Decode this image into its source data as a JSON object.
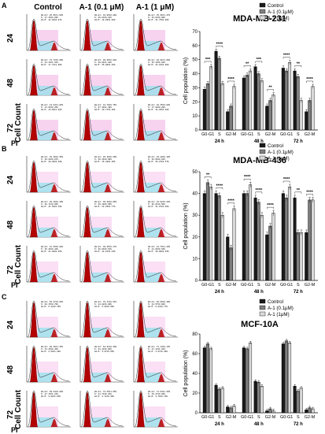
{
  "left_panel": {
    "columns": [
      "Control",
      "A-1 (0.1 μM)",
      "A-1 (1 μM)"
    ],
    "rows": [
      "24",
      "48",
      "72"
    ],
    "ylabel": "Cell Count",
    "xlabel": "PI",
    "panel_letters": [
      "A",
      "B",
      "C"
    ],
    "histograms": {
      "A": [
        [
          "G0-G1: 25.95±1.03%",
          "S: 47.46±0.29%",
          "G2-M: 13.02±0.87%"
        ],
        [
          "G0-G1: 32.06±0.89%",
          "S: 46.83±0.31%",
          "G2-M: 18.29±0.88%"
        ],
        [
          "G0-G1: 35.66±1.47%",
          "S: 33.03±0.89%",
          "G2-M: 31.75±0.89%"
        ],
        [
          "G0-G1: 37.72±0.09%",
          "S: 44.13±1.31%",
          "G2-M: 17.71±1.06%"
        ],
        [
          "G0-G1: 39.05±0.02%",
          "S: 39.86±1.10%",
          "G2-M: 35.98±0.46%"
        ],
        [
          "G0-G1: 40.91±1.66%",
          "S: 35.10±0.82%",
          "G2-M: 24.10±0.86%"
        ],
        [
          "G0-G1: 44.04±1.03%",
          "S: 41.93±0.26%",
          "G2-M: 13.00±1.02%"
        ],
        [
          "G0-G1: 41.79±0.75%",
          "S: 37.30±1.49%",
          "G2-M: 20.77±0.36%"
        ],
        [
          "G0-G1: 48.35±0.03%",
          "S: 17.89±0.28%",
          "G2-M: 31.85±0.40%"
        ]
      ],
      "B": [
        [
          "G0-G1: 45.39±0.35%",
          "S: 40.20±0.07%",
          "G2-M: 20.86±0.49%"
        ],
        [
          "G0-G1: 45.26±0.30%",
          "S: 39.46±0.09%",
          "G2-M: 15.48±0.36%"
        ],
        [
          "G0-G1: 45.20±0.40%",
          "S: 26.96±0.62%",
          "G2-M: 32.87±0.57%"
        ],
        [
          "G0-G1: 39.40±0.40%",
          "S: 38.71±0.66%",
          "G2-M: 21.58±0.10%"
        ],
        [
          "G0-G1: 39.90±0.06%",
          "S: 36.40±0.36%",
          "G2-M: 24.35±0.77%"
        ],
        [
          "G0-G1: 43.92±0.28%",
          "S: 30.01±0.50%",
          "G2-M: 31.07±0.26%"
        ],
        [
          "G0-G1: 41.45±0.88%",
          "S: 36.26±0.42%",
          "G2-M: 21.88±0.25%"
        ],
        [
          "G0-G1: 38.85±0.17%",
          "S: 38.69±0.61%",
          "G2-M: 24.07±0.43%"
        ],
        [
          "G0-G1: 41.75±1.20%",
          "S: 21.60±0.63%",
          "G2-M: 36.90±0.33%"
        ]
      ],
      "C": [
        [
          "G0-G1: 65.27±0.93%",
          "S: 26.15±0.79%",
          "G2-M: 6.42±0.79%"
        ],
        [
          "G0-G1: 70.11±0.31%",
          "S: 24.08±0.89%",
          "G2-M: 5.60±0.50%"
        ],
        [
          "G0-G1: 68.85±0.30%",
          "S: 24.57±0.98%",
          "G2-M: 6.84±0.77%"
        ],
        [
          "G0-G1: 66.26±1.25%",
          "S: 31.25±0.48%",
          "G2-M: 2.50±1.28%"
        ],
        [
          "G0-G1: 64.91±0.30%",
          "S: 31.42±0.06%",
          "G2-M: 3.67±0.56%"
        ],
        [
          "G0-G1: 71.13±0.13%",
          "S: 27.13±1.01%",
          "G2-M: 1.67±0.30%"
        ],
        [
          "G0-G1: 69.84±0.80%",
          "S: 27.15±1.24%",
          "G2-M: 3.00±1.05%"
        ],
        [
          "G0-G1: 73.55±1.05%",
          "S: 21.73±0.54%",
          "G2-M: 4.72±0.36%"
        ],
        [
          "G0-G1: 71.04±1.30%",
          "S: 25.27±0.89%",
          "G2-M: 3.70±0.70%"
        ]
      ]
    }
  },
  "legend": {
    "entries": [
      "Control",
      "A-1 (0.1μM)",
      "A-1 (1μM)"
    ],
    "colors": [
      "#1a1a1a",
      "#7f7f7f",
      "#d9d9d9"
    ]
  },
  "chart_data": [
    {
      "type": "bar",
      "title": "MDA-MB-231",
      "ylabel": "Cell population (%)",
      "ylim": [
        0,
        70
      ],
      "yticks": [
        0,
        10,
        20,
        30,
        40,
        50,
        60,
        70
      ],
      "phases": [
        "G0-G1",
        "S",
        "G2-M"
      ],
      "timepoints": [
        "24 h",
        "48 h",
        "72 h"
      ],
      "series": [
        {
          "name": "Control",
          "values": [
            29,
            56,
            13,
            37,
            45,
            17,
            44,
            42,
            13
          ]
        },
        {
          "name": "A-1 (0.1μM)",
          "values": [
            33,
            51,
            17,
            39,
            40,
            21,
            42,
            38,
            21
          ]
        },
        {
          "name": "A-1 (1μM)",
          "values": [
            45,
            33,
            31,
            42,
            35,
            25,
            48,
            21,
            31
          ]
        }
      ],
      "errors": [
        1.5,
        1.5,
        1.5,
        1.5,
        1.5,
        1.5,
        1.5,
        1.5,
        1.5
      ],
      "significance": [
        "***",
        "****",
        "****",
        "**",
        "***",
        "**",
        "****",
        "**",
        "****",
        "****",
        "**",
        "****",
        "****",
        "*",
        "**",
        "****",
        "***",
        "**"
      ]
    },
    {
      "type": "bar",
      "title": "MDA-MB-436",
      "ylabel": "Cell population (%)",
      "ylim": [
        0,
        50
      ],
      "yticks": [
        0,
        10,
        20,
        30,
        40,
        50
      ],
      "phases": [
        "G0-G1",
        "S",
        "G2-M"
      ],
      "timepoints": [
        "24 h",
        "48 h",
        "72 h"
      ],
      "series": [
        {
          "name": "Control",
          "values": [
            40,
            40,
            20,
            40,
            38,
            21,
            40,
            38,
            22
          ]
        },
        {
          "name": "A-1 (0.1μM)",
          "values": [
            45,
            39,
            15,
            40,
            36,
            25,
            38,
            22,
            37
          ]
        },
        {
          "name": "A-1 (1μM)",
          "values": [
            43,
            30,
            33,
            44,
            30,
            31,
            43,
            22,
            37
          ]
        }
      ],
      "errors": [
        1.2,
        1.2,
        1.2,
        1.2,
        1.2,
        1.2,
        1.2,
        1.2,
        1.2
      ],
      "significance": [
        "**",
        "****",
        "****",
        "****",
        "****",
        "****",
        "****",
        "**",
        "****",
        "****",
        "**",
        "****",
        "****",
        "****",
        "*",
        "****",
        "**"
      ]
    },
    {
      "type": "bar",
      "title": "MCF-10A",
      "ylabel": "Cell population (%)",
      "ylim": [
        0,
        80
      ],
      "yticks": [
        0,
        20,
        40,
        60,
        80
      ],
      "phases": [
        "G0-G1",
        "S",
        "G2-M"
      ],
      "timepoints": [
        "24 h",
        "48 h",
        "72 h"
      ],
      "series": [
        {
          "name": "Control",
          "values": [
            66,
            28,
            6,
            66,
            32,
            2,
            70,
            27,
            3
          ]
        },
        {
          "name": "A-1 (0.1μM)",
          "values": [
            70,
            24,
            5,
            65,
            31,
            4,
            73,
            22,
            5
          ]
        },
        {
          "name": "A-1 (1μM)",
          "values": [
            65,
            25,
            7,
            71,
            27,
            2,
            71,
            25,
            4
          ]
        }
      ],
      "errors": [
        1.5,
        1.5,
        1.5,
        1.5,
        1.5,
        1.5,
        1.5,
        1.5,
        1.5
      ],
      "significance": []
    }
  ]
}
